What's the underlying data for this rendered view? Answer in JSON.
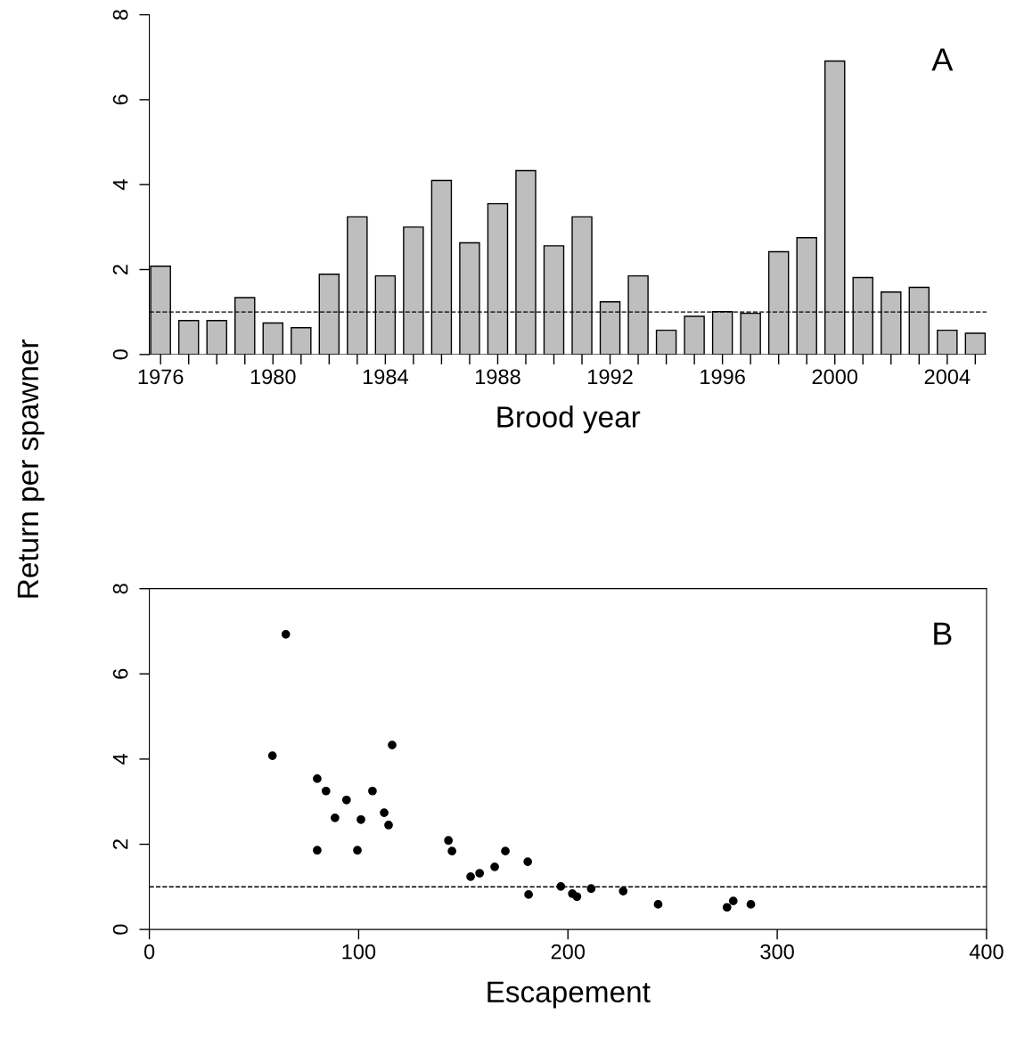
{
  "chart_data": [
    {
      "type": "bar",
      "xlabel": "Brood year",
      "ylabel": "Return per spawner",
      "x": [
        1976,
        1977,
        1978,
        1979,
        1980,
        1981,
        1982,
        1983,
        1984,
        1985,
        1986,
        1987,
        1988,
        1989,
        1990,
        1991,
        1992,
        1993,
        1994,
        1995,
        1996,
        1997,
        1998,
        1999,
        2000,
        2001,
        2002,
        2003,
        2004,
        2005
      ],
      "values": [
        2.08,
        0.8,
        0.8,
        1.34,
        0.74,
        0.63,
        1.89,
        3.24,
        1.85,
        3.0,
        4.1,
        2.63,
        3.55,
        4.33,
        2.56,
        3.24,
        1.24,
        1.85,
        0.57,
        0.9,
        1.01,
        0.97,
        2.42,
        2.75,
        6.91,
        1.81,
        1.47,
        1.58,
        0.57,
        0.5
      ],
      "color": "#bebebe",
      "xlim": [
        1975.6,
        2005.4
      ],
      "ylim": [
        0,
        8
      ],
      "xticks": [
        1976,
        {
          "value": 1977,
          "label": null
        },
        {
          "value": 1978,
          "label": null
        },
        {
          "value": 1979,
          "label": null
        },
        1980,
        {
          "value": 1981,
          "label": null
        },
        {
          "value": 1982,
          "label": null
        },
        {
          "value": 1983,
          "label": null
        },
        1984,
        {
          "value": 1985,
          "label": null
        },
        {
          "value": 1986,
          "label": null
        },
        {
          "value": 1987,
          "label": null
        },
        1988,
        {
          "value": 1989,
          "label": null
        },
        {
          "value": 1990,
          "label": null
        },
        {
          "value": 1991,
          "label": null
        },
        1992,
        {
          "value": 1993,
          "label": null
        },
        {
          "value": 1994,
          "label": null
        },
        {
          "value": 1995,
          "label": null
        },
        1996,
        {
          "value": 1997,
          "label": null
        },
        {
          "value": 1998,
          "label": null
        },
        {
          "value": 1999,
          "label": null
        },
        2000,
        {
          "value": 2001,
          "label": null
        },
        {
          "value": 2002,
          "label": null
        },
        {
          "value": 2003,
          "label": null
        },
        2004,
        {
          "value": 2005,
          "label": null
        }
      ],
      "yticks": [
        0,
        2,
        4,
        6,
        8
      ],
      "ref_lines": [
        {
          "axis": "y",
          "value": 1,
          "line_style": "dashed",
          "color": "#000000"
        }
      ],
      "annotations": [
        "A"
      ],
      "grid": false,
      "legend": false
    },
    {
      "type": "scatter",
      "xlabel": "Escapement",
      "x": [
        58.8,
        65.2,
        80.2,
        84.4,
        80.2,
        88.7,
        94.2,
        99.4,
        101.1,
        106.6,
        112.2,
        114.3,
        116.0,
        142.9,
        144.6,
        153.5,
        157.8,
        165.0,
        170.1,
        180.8,
        181.2,
        196.6,
        202.1,
        204.3,
        211.1,
        226.4,
        243.1,
        276.0,
        279.0,
        287.4
      ],
      "values": [
        4.08,
        6.93,
        3.54,
        3.25,
        1.86,
        2.62,
        3.04,
        1.86,
        2.58,
        3.25,
        2.74,
        2.45,
        4.33,
        2.09,
        1.84,
        1.24,
        1.32,
        1.47,
        1.84,
        1.59,
        0.82,
        1.01,
        0.84,
        0.77,
        0.96,
        0.9,
        0.59,
        0.52,
        0.67,
        0.59
      ],
      "color": "#000000",
      "marker": "circle",
      "xlim": [
        0,
        400
      ],
      "ylim": [
        0,
        8
      ],
      "xticks": [
        0,
        100,
        200,
        300,
        400
      ],
      "yticks": [
        0,
        2,
        4,
        6,
        8
      ],
      "ref_lines": [
        {
          "axis": "y",
          "value": 1,
          "line_style": "dashed",
          "color": "#000000"
        }
      ],
      "annotations": [
        "B"
      ],
      "grid": false,
      "legend": false
    }
  ]
}
